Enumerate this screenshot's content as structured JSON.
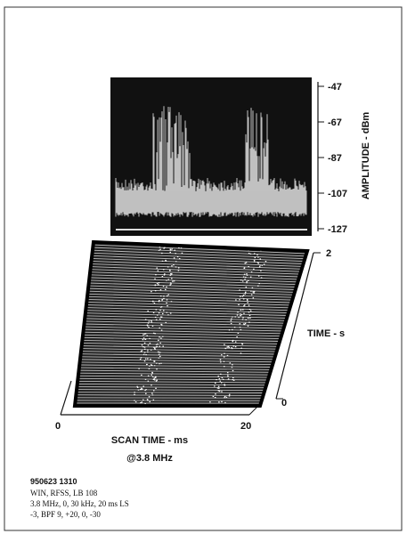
{
  "figure": {
    "amplitude_axis": {
      "label": "AMPLITUDE - dBm",
      "ticks": [
        "-47",
        "-67",
        "-87",
        "-107",
        "-127"
      ]
    },
    "time_axis": {
      "label": "TIME - s",
      "ticks": [
        "2",
        "0"
      ]
    },
    "scan_axis": {
      "label": "SCAN TIME - ms",
      "sublabel": "@3.8 MHz",
      "ticks": [
        "0",
        "20"
      ]
    }
  },
  "caption": {
    "id": "950623 1310",
    "lines": [
      "WIN, RFSS, LB 108",
      "3.8 MHz, 0, 30 kHz, 20 ms LS",
      "-3, BPF 9, +20, 0, -30"
    ]
  }
}
